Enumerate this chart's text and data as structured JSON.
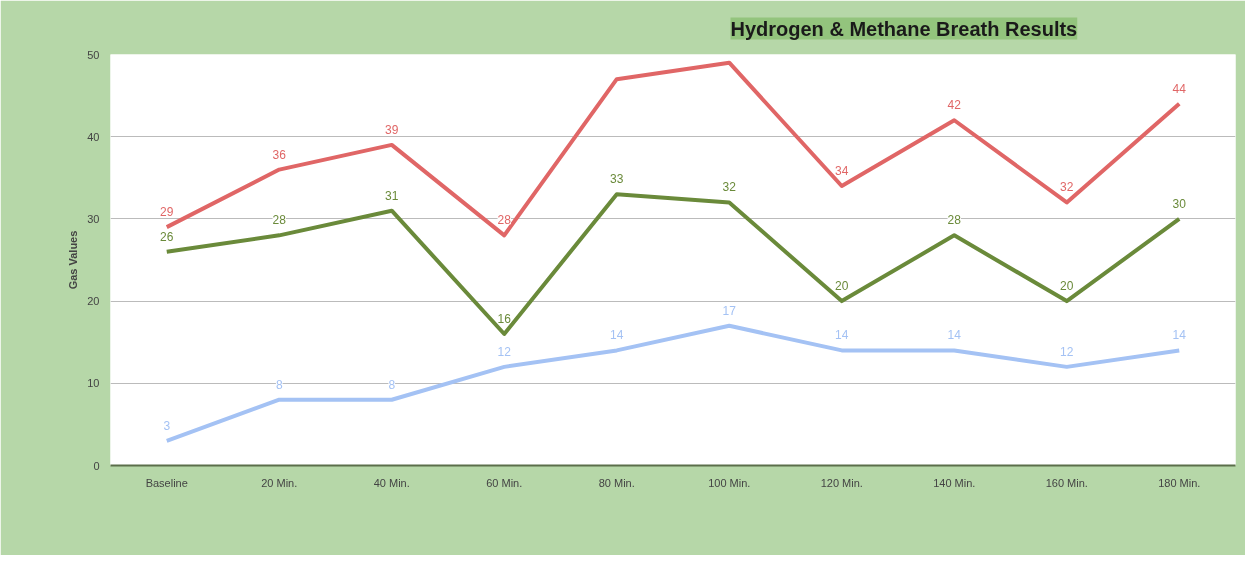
{
  "chart_data": {
    "type": "line",
    "title": "Hydrogen & Methane Breath Results",
    "ylabel": "Gas Values",
    "categories": [
      "Baseline",
      "20 Min.",
      "40 Min.",
      "60 Min.",
      "80 Min.",
      "100 Min.",
      "120 Min.",
      "140 Min.",
      "160 Min.",
      "180 Min."
    ],
    "series": [
      {
        "color": "#e06666",
        "values": [
          29,
          36,
          39,
          28,
          47,
          49,
          34,
          42,
          32,
          44
        ],
        "value_labels": [
          "29",
          "36",
          "39",
          "28",
          null,
          null,
          "34",
          "42",
          "32",
          "44"
        ]
      },
      {
        "color": "#6a8a3a",
        "values": [
          26,
          28,
          31,
          16,
          33,
          32,
          20,
          28,
          20,
          30
        ],
        "value_labels": [
          "26",
          "28",
          "31",
          "16",
          "33",
          "32",
          "20",
          "28",
          "20",
          "30"
        ]
      },
      {
        "color": "#a4c2f4",
        "values": [
          3,
          8,
          8,
          12,
          14,
          17,
          14,
          14,
          12,
          14
        ],
        "value_labels": [
          "3",
          "8",
          "8",
          "12",
          "14",
          "17",
          "14",
          "14",
          "12",
          "14"
        ]
      }
    ],
    "ylim": [
      0,
      50
    ],
    "yticks": [
      0,
      10,
      20,
      30,
      40,
      50
    ],
    "grid": "y",
    "marker": "none",
    "line_style": "solid"
  }
}
